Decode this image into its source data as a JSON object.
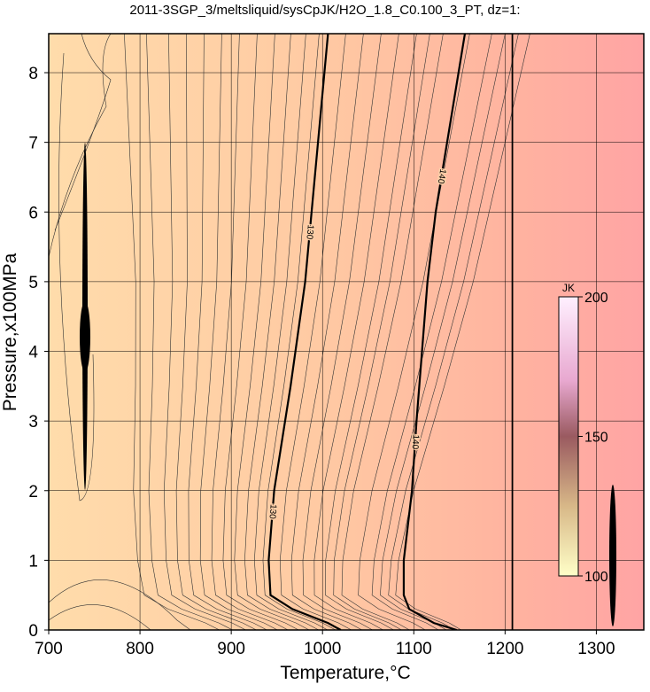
{
  "chart_data": {
    "type": "contour",
    "title": "2011-3SGP_3/meltsliquid/sysCpJK/H2O_1.8_C0.100_3_PT, dz=1:",
    "x_label": "Temperature,°C",
    "y_label": "Pressure,x100MPa",
    "xlim": [
      700,
      1352
    ],
    "ylim": [
      0,
      8.56
    ],
    "xticks": [
      700,
      800,
      900,
      1000,
      1100,
      1200,
      1300
    ],
    "yticks": [
      0,
      1,
      2,
      3,
      4,
      5,
      6,
      7,
      8
    ],
    "grid": true,
    "series": [
      {
        "name": "130",
        "color": "#000000",
        "x": [
          1006,
          981,
          965,
          947,
          941,
          943,
          967,
          1006,
          1020
        ],
        "values": [
          8.56,
          5,
          3.5,
          2,
          1,
          0.5,
          0.3,
          0.1,
          0
        ]
      },
      {
        "name": "140",
        "color": "#000000",
        "x": [
          1156,
          1124,
          1115,
          1103,
          1098,
          1089,
          1089,
          1095,
          1122,
          1147
        ],
        "values": [
          8.56,
          6,
          5,
          3,
          2,
          1,
          0.5,
          0.3,
          0.1,
          0
        ]
      }
    ],
    "boundary_x": 1208,
    "colorbar": {
      "label": "JK",
      "lim": [
        100,
        200
      ],
      "ticks": [
        100,
        150,
        200
      ]
    }
  }
}
